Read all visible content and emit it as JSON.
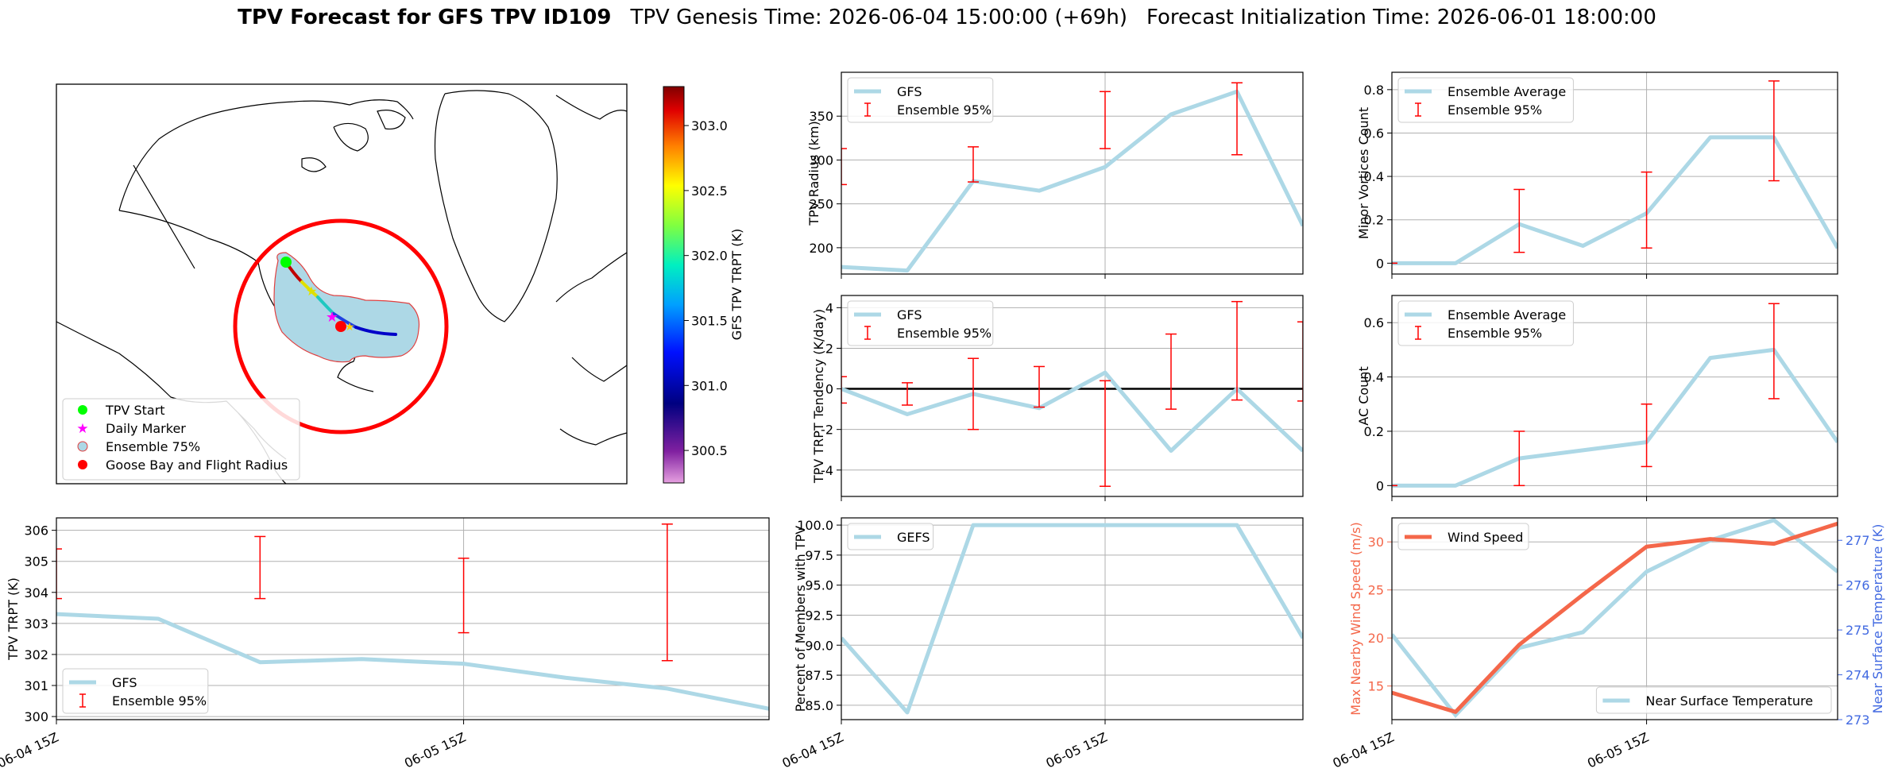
{
  "title": {
    "bold": "TPV Forecast for GFS TPV ID109",
    "genesis": "TPV Genesis Time: 2026-06-04 15:00:00 (+69h)",
    "init": "Forecast Initialization Time: 2026-06-01 18:00:00"
  },
  "colors": {
    "gfs": "#ADD8E6",
    "error": "#FF0000",
    "wind": "#F4674A",
    "temp_axis": "#4169E1",
    "circle": "#FF0000",
    "start": "#00FF00",
    "marker": "#FF00FF",
    "goose": "#FF0000"
  },
  "map": {
    "colorbar": {
      "label": "GFS TPV TRPT (K)",
      "min": 300.25,
      "max": 303.3,
      "ticks": [
        300.5,
        301.0,
        301.5,
        302.0,
        302.5,
        303.0
      ],
      "tick_labels": [
        "300.5",
        "301.0",
        "301.5",
        "302.0",
        "302.5",
        "303.0"
      ]
    },
    "legend": [
      {
        "label": "TPV Start",
        "icon": "green-dot"
      },
      {
        "label": "Daily Marker",
        "icon": "magenta-star"
      },
      {
        "label": "Ensemble 75%",
        "icon": "shaded-circle"
      },
      {
        "label": "Goose Bay and Flight Radius",
        "icon": "red-dot"
      }
    ]
  },
  "chart_data": [
    {
      "id": "radius",
      "type": "line",
      "ylabel": "TPV Radius (km)",
      "ylim": [
        170,
        400
      ],
      "yticks": [
        200,
        250,
        300,
        350
      ],
      "grid": true,
      "legend_loc": "upper-left",
      "x": [
        0,
        1,
        2,
        3,
        4,
        5,
        6,
        7
      ],
      "xticks": [],
      "series": [
        {
          "name": "GFS",
          "values": [
            178,
            174,
            276,
            265,
            292,
            352,
            378,
            225
          ]
        }
      ],
      "errorbars": {
        "name": "Ensemble 95%",
        "x": [
          0,
          2,
          4,
          6
        ],
        "low": [
          272,
          275,
          313,
          306
        ],
        "high": [
          313,
          315,
          378,
          388
        ]
      }
    },
    {
      "id": "minor",
      "type": "line",
      "ylabel": "Minor Vortices Count",
      "ylim": [
        -0.05,
        0.88
      ],
      "yticks": [
        0.0,
        0.2,
        0.4,
        0.6,
        0.8
      ],
      "grid": true,
      "legend_loc": "upper-left",
      "x": [
        0,
        1,
        2,
        3,
        4,
        5,
        6,
        7
      ],
      "xticks": [],
      "series": [
        {
          "name": "Ensemble Average",
          "values": [
            0.0,
            0.0,
            0.18,
            0.08,
            0.23,
            0.58,
            0.58,
            0.07
          ]
        }
      ],
      "errorbars": {
        "name": "Ensemble 95%",
        "x": [
          0,
          2,
          4,
          6
        ],
        "low": [
          0.0,
          0.05,
          0.07,
          0.38
        ],
        "high": [
          0.0,
          0.34,
          0.42,
          0.84
        ]
      }
    },
    {
      "id": "tendency",
      "type": "line",
      "ylabel": "TPV TRPT Tendency (K/day)",
      "ylim": [
        -5.3,
        4.6
      ],
      "yticks": [
        -4,
        -2,
        0,
        2,
        4
      ],
      "grid": true,
      "legend_loc": "upper-left",
      "zero_line": true,
      "x": [
        0,
        1,
        2,
        3,
        4,
        5,
        6,
        7
      ],
      "xticks": [],
      "series": [
        {
          "name": "GFS",
          "values": [
            0.0,
            -1.25,
            -0.25,
            -0.95,
            0.8,
            -3.05,
            0.0,
            -3.05
          ]
        }
      ],
      "errorbars": {
        "name": "Ensemble 95%",
        "x": [
          0,
          1,
          2,
          3,
          4,
          5,
          6,
          7
        ],
        "low": [
          -0.7,
          -0.8,
          -2.0,
          -0.9,
          -4.8,
          -1.0,
          -0.55,
          -0.6
        ],
        "high": [
          0.6,
          0.3,
          1.5,
          1.1,
          0.4,
          2.7,
          4.3,
          3.3
        ]
      }
    },
    {
      "id": "ac",
      "type": "line",
      "ylabel": "AC Count",
      "ylim": [
        -0.04,
        0.7
      ],
      "yticks": [
        0.0,
        0.2,
        0.4,
        0.6
      ],
      "grid": true,
      "legend_loc": "upper-left",
      "x": [
        0,
        1,
        2,
        3,
        4,
        5,
        6,
        7
      ],
      "xticks": [],
      "series": [
        {
          "name": "Ensemble Average",
          "values": [
            0.0,
            0.0,
            0.1,
            0.13,
            0.16,
            0.47,
            0.5,
            0.16
          ]
        }
      ],
      "errorbars": {
        "name": "Ensemble 95%",
        "x": [
          0,
          2,
          4,
          6
        ],
        "low": [
          0.0,
          0.0,
          0.07,
          0.32
        ],
        "high": [
          0.0,
          0.2,
          0.3,
          0.67
        ]
      }
    },
    {
      "id": "trpt",
      "type": "line",
      "ylabel": "TPV TRPT (K)",
      "ylim": [
        299.9,
        306.4
      ],
      "yticks": [
        300,
        301,
        302,
        303,
        304,
        305,
        306
      ],
      "grid": true,
      "legend_loc": "lower-left",
      "x": [
        0,
        0.5,
        1,
        1.5,
        2,
        2.5,
        3,
        3.5
      ],
      "xticks": [
        0,
        2
      ],
      "xtick_labels": [
        "06-04 15Z",
        "06-05 15Z"
      ],
      "series": [
        {
          "name": "GFS",
          "values": [
            303.3,
            303.15,
            301.75,
            301.85,
            301.7,
            301.25,
            300.9,
            300.25
          ]
        }
      ],
      "errorbars": {
        "name": "Ensemble 95%",
        "x": [
          0,
          1,
          2,
          3
        ],
        "low": [
          303.8,
          303.8,
          302.7,
          301.8
        ],
        "high": [
          305.4,
          305.8,
          305.1,
          306.2
        ]
      }
    },
    {
      "id": "members",
      "type": "line",
      "ylabel": "Percent of Members with TPV",
      "ylim": [
        83.8,
        100.6
      ],
      "yticks": [
        85.0,
        87.5,
        90.0,
        92.5,
        95.0,
        97.5,
        100.0
      ],
      "ytick_labels": [
        "85.0",
        "87.5",
        "90.0",
        "92.5",
        "95.0",
        "97.5",
        "100.0"
      ],
      "grid": true,
      "legend_loc": "upper-left",
      "x": [
        0,
        1,
        2,
        3,
        4,
        5,
        6,
        7
      ],
      "xticks": [
        0,
        4
      ],
      "xtick_labels": [
        "06-04 15Z",
        "06-05 15Z"
      ],
      "series": [
        {
          "name": "GEFS",
          "values": [
            90.6,
            84.4,
            100.0,
            100.0,
            100.0,
            100.0,
            100.0,
            90.6
          ]
        }
      ]
    },
    {
      "id": "wind",
      "type": "line",
      "ylabel": "Max Nearby Wind Speed (m/s)",
      "ylim": [
        11.5,
        32.5
      ],
      "yticks": [
        15,
        20,
        25,
        30
      ],
      "grid": true,
      "legend_loc": "upper-left",
      "x": [
        0,
        1,
        2,
        3,
        4,
        5,
        6,
        7
      ],
      "xticks": [
        0,
        4
      ],
      "xtick_labels": [
        "06-04 15Z",
        "06-05 15Z"
      ],
      "series": [
        {
          "name": "Wind Speed",
          "values": [
            14.3,
            12.3,
            19.3,
            24.5,
            29.5,
            30.3,
            29.8,
            31.9
          ]
        }
      ],
      "y2": {
        "label": "Near Surface Temperature (K)",
        "lim": [
          273,
          277.5
        ],
        "ticks": [
          273,
          274,
          275,
          276,
          277
        ],
        "legend_loc": "lower-right",
        "series": [
          {
            "name": "Near Surface Temperature",
            "values": [
              274.9,
              273.1,
              274.6,
              274.95,
              276.3,
              277.0,
              277.45,
              276.3
            ]
          }
        ]
      }
    }
  ]
}
